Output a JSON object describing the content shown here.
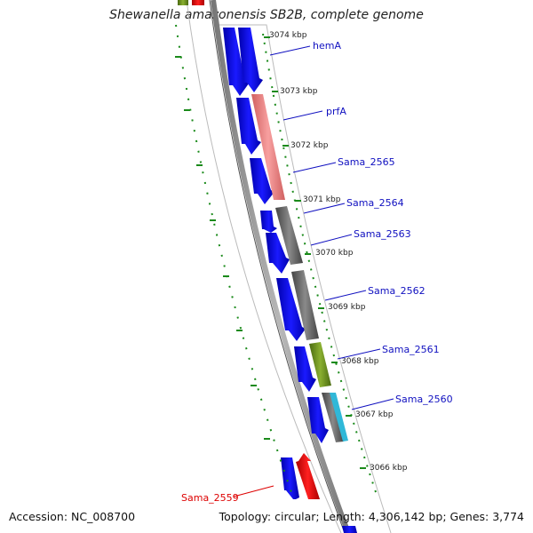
{
  "title": "Shewanella amazonensis SB2B, complete genome",
  "accession_text": "Accession: NC_008700",
  "stats_text": "Topology: circular; Length: 4,306,142 bp; Genes: 3,774",
  "colors": {
    "forward": "#0000ee",
    "reverse": "#ee0000",
    "label_blue": "#1010c0",
    "label_red": "#dd0000",
    "tick_green": "#1a8a1a",
    "pink": "#f08080",
    "gray": "#666666",
    "olive": "#6f9020",
    "cyan": "#20b0d0"
  },
  "kbp_labels": [
    "3074 kbp",
    "3073 kbp",
    "3072 kbp",
    "3071 kbp",
    "3070 kbp",
    "3069 kbp",
    "3068 kbp",
    "3067 kbp",
    "3066 kbp"
  ],
  "gene_labels": [
    {
      "text": "hemA",
      "color": "blue"
    },
    {
      "text": "prfA",
      "color": "blue"
    },
    {
      "text": "Sama_2565",
      "color": "blue"
    },
    {
      "text": "Sama_2564",
      "color": "blue"
    },
    {
      "text": "Sama_2563",
      "color": "blue"
    },
    {
      "text": "Sama_2562",
      "color": "blue"
    },
    {
      "text": "Sama_2561",
      "color": "blue"
    },
    {
      "text": "Sama_2560",
      "color": "blue"
    },
    {
      "text": "Sama_2559",
      "color": "red"
    }
  ]
}
